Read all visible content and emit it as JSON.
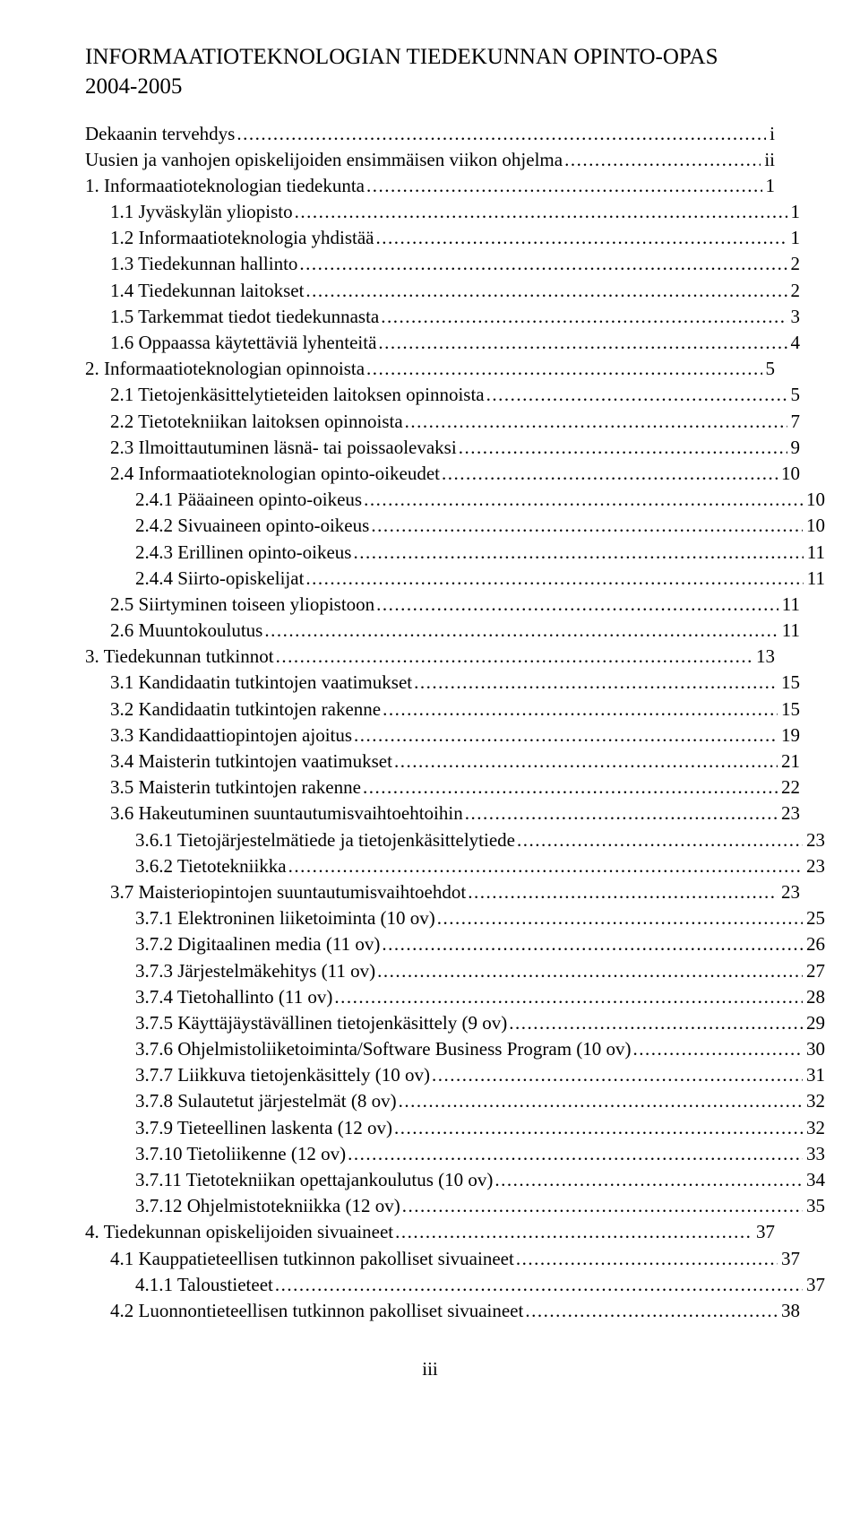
{
  "title": "INFORMAATIOTEKNOLOGIAN TIEDEKUNNAN OPINTO-OPAS",
  "year": "2004-2005",
  "page_number": "iii",
  "font_family": "Times New Roman",
  "text_color": "#000000",
  "background_color": "#ffffff",
  "title_fontsize": 25,
  "body_fontsize": 21,
  "entries": [
    {
      "label": "Dekaanin tervehdys",
      "page": "i",
      "indent": 0
    },
    {
      "label": "Uusien ja vanhojen opiskelijoiden ensimmäisen viikon ohjelma",
      "page": "ii",
      "indent": 0
    },
    {
      "label": "1.   Informaatioteknologian tiedekunta",
      "page": "1",
      "indent": 0
    },
    {
      "label": "1.1   Jyväskylän yliopisto",
      "page": "1",
      "indent": 1
    },
    {
      "label": "1.2   Informaatioteknologia yhdistää",
      "page": "1",
      "indent": 1
    },
    {
      "label": "1.3   Tiedekunnan hallinto",
      "page": "2",
      "indent": 1
    },
    {
      "label": "1.4   Tiedekunnan laitokset",
      "page": "2",
      "indent": 1
    },
    {
      "label": "1.5   Tarkemmat tiedot tiedekunnasta",
      "page": "3",
      "indent": 1
    },
    {
      "label": "1.6   Oppaassa käytettäviä lyhenteitä",
      "page": "4",
      "indent": 1
    },
    {
      "label": "2.   Informaatioteknologian opinnoista",
      "page": "5",
      "indent": 0
    },
    {
      "label": "2.1   Tietojenkäsittelytieteiden laitoksen opinnoista",
      "page": "5",
      "indent": 1
    },
    {
      "label": "2.2   Tietotekniikan laitoksen opinnoista",
      "page": "7",
      "indent": 1
    },
    {
      "label": "2.3   Ilmoittautuminen läsnä- tai poissaolevaksi",
      "page": "9",
      "indent": 1
    },
    {
      "label": "2.4   Informaatioteknologian opinto-oikeudet",
      "page": "10",
      "indent": 1
    },
    {
      "label": "2.4.1  Pääaineen opinto-oikeus",
      "page": "10",
      "indent": 2
    },
    {
      "label": "2.4.2  Sivuaineen opinto-oikeus",
      "page": "10",
      "indent": 2
    },
    {
      "label": "2.4.3  Erillinen opinto-oikeus",
      "page": "11",
      "indent": 2
    },
    {
      "label": "2.4.4  Siirto-opiskelijat",
      "page": "11",
      "indent": 2
    },
    {
      "label": "2.5   Siirtyminen toiseen yliopistoon",
      "page": "11",
      "indent": 1
    },
    {
      "label": "2.6   Muuntokoulutus",
      "page": "11",
      "indent": 1
    },
    {
      "label": "3.   Tiedekunnan tutkinnot",
      "page": "13",
      "indent": 0
    },
    {
      "label": "3.1   Kandidaatin tutkintojen vaatimukset",
      "page": "15",
      "indent": 1
    },
    {
      "label": "3.2   Kandidaatin tutkintojen rakenne",
      "page": "15",
      "indent": 1
    },
    {
      "label": "3.3   Kandidaattiopintojen ajoitus",
      "page": "19",
      "indent": 1
    },
    {
      "label": "3.4   Maisterin tutkintojen vaatimukset",
      "page": "21",
      "indent": 1
    },
    {
      "label": "3.5   Maisterin tutkintojen rakenne",
      "page": "22",
      "indent": 1
    },
    {
      "label": "3.6   Hakeutuminen suuntautumisvaihtoehtoihin",
      "page": "23",
      "indent": 1
    },
    {
      "label": "3.6.1  Tietojärjestelmätiede ja tietojenkäsittelytiede",
      "page": "23",
      "indent": 2
    },
    {
      "label": "3.6.2  Tietotekniikka",
      "page": "23",
      "indent": 2
    },
    {
      "label": "3.7   Maisteriopintojen suuntautumisvaihtoehdot",
      "page": "23",
      "indent": 1
    },
    {
      "label": "3.7.1  Elektroninen liiketoiminta (10 ov)",
      "page": "25",
      "indent": 2
    },
    {
      "label": "3.7.2  Digitaalinen media (11 ov)",
      "page": "26",
      "indent": 2
    },
    {
      "label": "3.7.3  Järjestelmäkehitys (11 ov)",
      "page": "27",
      "indent": 2
    },
    {
      "label": "3.7.4  Tietohallinto (11 ov)",
      "page": "28",
      "indent": 2
    },
    {
      "label": "3.7.5  Käyttäjäystävällinen tietojenkäsittely (9 ov)",
      "page": "29",
      "indent": 2
    },
    {
      "label": "3.7.6  Ohjelmistoliiketoiminta/Software Business Program (10 ov)",
      "page": "30",
      "indent": 2
    },
    {
      "label": "3.7.7  Liikkuva tietojenkäsittely (10 ov)",
      "page": "31",
      "indent": 2
    },
    {
      "label": "3.7.8  Sulautetut järjestelmät (8 ov)",
      "page": "32",
      "indent": 2
    },
    {
      "label": "3.7.9  Tieteellinen laskenta (12 ov)",
      "page": "32",
      "indent": 2
    },
    {
      "label": "3.7.10   Tietoliikenne (12 ov)",
      "page": "33",
      "indent": 2
    },
    {
      "label": "3.7.11   Tietotekniikan opettajankoulutus (10 ov)",
      "page": "34",
      "indent": 2
    },
    {
      "label": "3.7.12   Ohjelmistotekniikka (12 ov)",
      "page": "35",
      "indent": 2
    },
    {
      "label": "4.   Tiedekunnan opiskelijoiden sivuaineet",
      "page": "37",
      "indent": 0
    },
    {
      "label": "4.1   Kauppatieteellisen tutkinnon pakolliset sivuaineet",
      "page": "37",
      "indent": 1
    },
    {
      "label": "4.1.1  Taloustieteet",
      "page": "37",
      "indent": 2
    },
    {
      "label": "4.2   Luonnontieteellisen tutkinnon pakolliset sivuaineet",
      "page": "38",
      "indent": 1
    }
  ]
}
